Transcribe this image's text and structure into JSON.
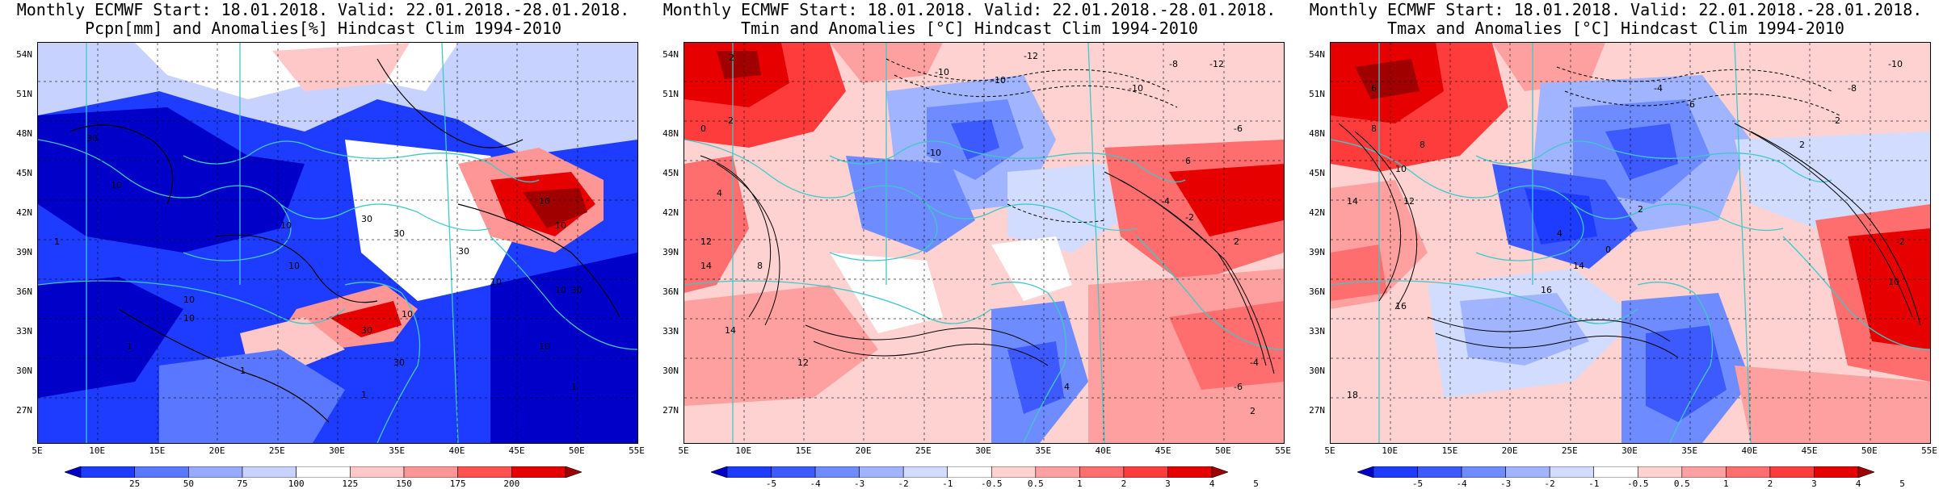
{
  "panels": [
    {
      "title_line1": "Monthly ECMWF Start: 18.01.2018. Valid: 22.01.2018.-28.01.2018.",
      "title_line2": "Pcpn[mm] and Anomalies[%] Hindcast Clim 1994-2010",
      "variable": "precipitation",
      "colorbar": {
        "ticks": [
          "25",
          "50",
          "75",
          "100",
          "125",
          "150",
          "175",
          "200"
        ],
        "colors": [
          "#0000c8",
          "#1e3cff",
          "#5a78ff",
          "#96aaff",
          "#c8d2ff",
          "#ffffff",
          "#ffc8c8",
          "#ff9696",
          "#ff5050",
          "#e60000",
          "#a00000"
        ]
      },
      "contour_labels": [
        "30",
        "30",
        "30",
        "10",
        "10",
        "10",
        "10",
        "10",
        "30",
        "10",
        "30",
        "10",
        "10",
        "1",
        "1",
        "1",
        "30",
        "10",
        "30",
        "10",
        "1",
        "1",
        "10"
      ]
    },
    {
      "title_line1": "Monthly ECMWF Start: 18.01.2018. Valid: 22.01.2018.-28.01.2018.",
      "title_line2": "Tmin and Anomalies [°C] Hindcast Clim 1994-2010",
      "variable": "tmin",
      "colorbar": {
        "ticks": [
          "-5",
          "-4",
          "-3",
          "-2",
          "-1",
          "-0.5",
          "0.5",
          "1",
          "2",
          "3",
          "4",
          "5"
        ],
        "colors": [
          "#0000c8",
          "#1e3cff",
          "#3c5aff",
          "#6e8cff",
          "#a0b4ff",
          "#d2dcff",
          "#ffffff",
          "#ffd2d2",
          "#ffa0a0",
          "#ff6e6e",
          "#ff3c3c",
          "#e60000",
          "#a00000"
        ]
      },
      "contour_labels": [
        "2",
        "-10",
        "-12",
        "-10",
        "-8",
        "-10",
        "-12",
        "0",
        "-2",
        "-10",
        "-6",
        "2",
        "6",
        "-4",
        "-2",
        "4",
        "8",
        "12",
        "14",
        "12",
        "14",
        "4",
        "2",
        "-6",
        "-4"
      ]
    },
    {
      "title_line1": "Monthly ECMWF Start: 18.01.2018. Valid: 22.01.2018.-28.01.2018.",
      "title_line2": "Tmax and Anomalies [°C] Hindcast Clim 1994-2010",
      "variable": "tmax",
      "colorbar": {
        "ticks": [
          "-5",
          "-4",
          "-3",
          "-2",
          "-1",
          "-0.5",
          "0.5",
          "1",
          "2",
          "3",
          "4",
          "5"
        ],
        "colors": [
          "#0000c8",
          "#1e3cff",
          "#3c5aff",
          "#6e8cff",
          "#a0b4ff",
          "#d2dcff",
          "#ffffff",
          "#ffd2d2",
          "#ffa0a0",
          "#ff6e6e",
          "#ff3c3c",
          "#e60000",
          "#a00000"
        ]
      },
      "contour_labels": [
        "-10",
        "-8",
        "-6",
        "6",
        "-4",
        "-2",
        "2",
        "8",
        "10",
        "12",
        "14",
        "16",
        "18",
        "14",
        "16",
        "10",
        "8",
        "4",
        "0",
        "-2",
        "2"
      ]
    }
  ],
  "lat_labels": [
    "54N",
    "51N",
    "48N",
    "45N",
    "42N",
    "39N",
    "36N",
    "33N",
    "30N",
    "27N"
  ],
  "lon_labels": [
    "5E",
    "10E",
    "15E",
    "20E",
    "25E",
    "30E",
    "35E",
    "40E",
    "45E",
    "50E",
    "55E"
  ],
  "colors": {
    "coast": "#40c8c8",
    "contour": "#000000",
    "deep_blue": "#0000c8",
    "deep_red": "#a00000"
  }
}
